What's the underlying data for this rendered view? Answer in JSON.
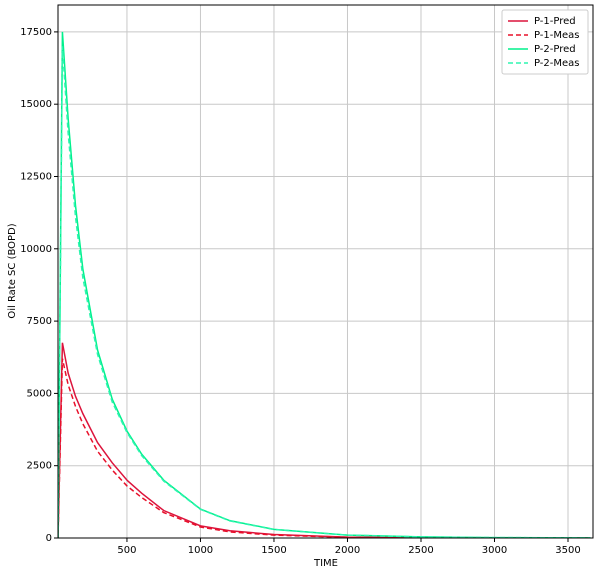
{
  "chart_data": {
    "type": "line",
    "x_label": "TIME",
    "y_label": "Oil Rate SC (BOPD)",
    "x": [
      31,
      61,
      100,
      150,
      200,
      300,
      400,
      500,
      600,
      750,
      1000,
      1200,
      1500,
      2000,
      2500,
      3000,
      3653
    ],
    "series": [
      {
        "name": "P-1-Pred",
        "color": "#dc143c",
        "linestyle": "solid",
        "values": [
          0,
          6750,
          5700,
          4900,
          4300,
          3300,
          2600,
          2000,
          1550,
          950,
          420,
          250,
          120,
          30,
          10,
          3,
          1
        ]
      },
      {
        "name": "P-1-Meas",
        "color": "#e8102a",
        "linestyle": "dashed",
        "values": [
          0,
          6200,
          5300,
          4550,
          3950,
          3000,
          2350,
          1800,
          1400,
          880,
          380,
          210,
          100,
          25,
          8,
          2,
          1
        ]
      },
      {
        "name": "P-2-Pred",
        "color": "#00f08c",
        "linestyle": "solid",
        "values": [
          0,
          17500,
          14500,
          11500,
          9300,
          6500,
          4800,
          3700,
          2900,
          2000,
          1000,
          600,
          300,
          100,
          40,
          15,
          5
        ]
      },
      {
        "name": "P-2-Meas",
        "color": "#2ef5b0",
        "linestyle": "dashed",
        "values": [
          0,
          17000,
          14000,
          11100,
          9000,
          6350,
          4700,
          3650,
          2850,
          1970,
          990,
          590,
          295,
          98,
          38,
          14,
          5
        ]
      }
    ],
    "xlim": [
      31,
      3670
    ],
    "xticks": [
      500,
      1000,
      1500,
      2000,
      2500,
      3000,
      3500
    ],
    "ylim": [
      0,
      18430
    ],
    "yticks": [
      0,
      2500,
      5000,
      7500,
      10000,
      12500,
      15000,
      17500
    ],
    "grid": true,
    "legend": "upper right"
  }
}
